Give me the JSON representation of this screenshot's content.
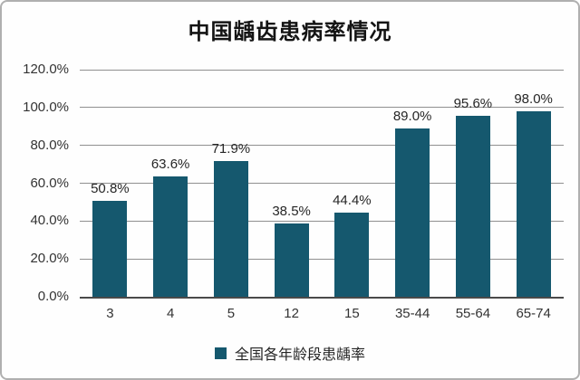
{
  "page": {
    "background": "#fefefe",
    "frame_border_color": "#b0b0b0"
  },
  "chart_data": {
    "type": "bar",
    "title": "中国龋齿患病率情况",
    "categories": [
      "3",
      "4",
      "5",
      "12",
      "15",
      "35-44",
      "55-64",
      "65-74"
    ],
    "series": [
      {
        "name": "全国各年龄段患龋率",
        "values": [
          50.8,
          63.6,
          71.9,
          38.5,
          44.4,
          89.0,
          95.6,
          98.0
        ],
        "data_labels": [
          "50.8%",
          "63.6%",
          "71.9%",
          "38.5%",
          "44.4%",
          "89.0%",
          "95.6%",
          "98.0%"
        ]
      }
    ],
    "xlabel": "",
    "ylabel": "",
    "ylim": [
      0,
      120
    ],
    "yticks": [
      {
        "value": 0,
        "label": "0.0%"
      },
      {
        "value": 20,
        "label": "20.0%"
      },
      {
        "value": 40,
        "label": "40.0%"
      },
      {
        "value": 60,
        "label": "60.0%"
      },
      {
        "value": 80,
        "label": "80.0%"
      },
      {
        "value": 100,
        "label": "100.0%"
      },
      {
        "value": 120,
        "label": "120.0%"
      }
    ],
    "grid": true,
    "legend_position": "bottom",
    "colors": {
      "bar": "#15586E",
      "gridline": "#8F8F8F",
      "axis_line": "#4A4A4A",
      "title_text": "#141414",
      "tick_text": "#333333",
      "value_text": "#262626"
    }
  }
}
